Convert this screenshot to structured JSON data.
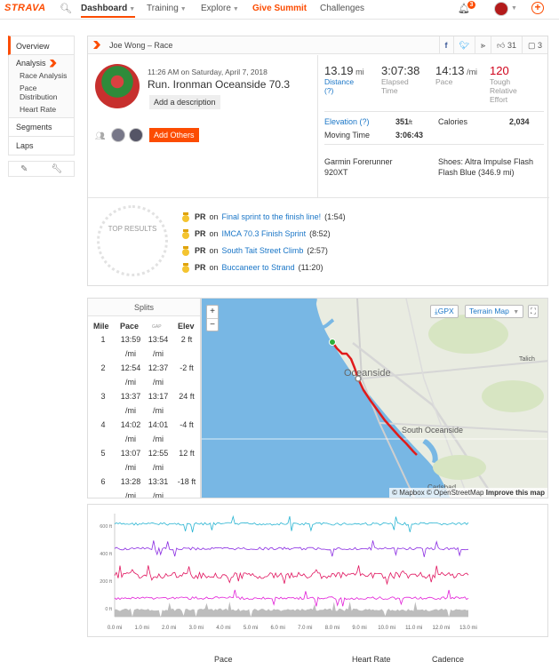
{
  "nav": {
    "logo": "STRAVA",
    "items": [
      {
        "label": "Dashboard",
        "active": true,
        "caret": true
      },
      {
        "label": "Training",
        "active": false,
        "caret": true
      },
      {
        "label": "Explore",
        "active": false,
        "caret": true
      },
      {
        "label": "Give Summit",
        "active": false,
        "caret": false
      },
      {
        "label": "Challenges",
        "active": false,
        "caret": false
      }
    ],
    "notification_count": "3",
    "icons": [
      "search-icon",
      "bell-icon",
      "avatar",
      "plus-icon"
    ]
  },
  "sidebar": {
    "overview": "Overview",
    "analysis": "Analysis",
    "analysis_items": [
      "Race Analysis",
      "Pace Distribution",
      "Heart Rate"
    ],
    "segments": "Segments",
    "laps": "Laps"
  },
  "activity": {
    "header_title": "Joe Wong – Race",
    "kudos": "31",
    "comments": "3",
    "date": "11:26 AM on Saturday, April 7, 2018",
    "name": "Run. Ironman Oceanside 70.3",
    "add_description": "Add a description",
    "add_others": "Add Others",
    "stats": {
      "distance_value": "13.19",
      "distance_unit": "mi",
      "distance_label": "Distance (?)",
      "elapsed_value": "3:07:38",
      "elapsed_label": "Elapsed Time",
      "pace_value": "14:13",
      "pace_unit": "/mi",
      "pace_label": "Pace",
      "effort_value": "120",
      "effort_label": "Tough Relative Effort"
    },
    "elevation_label": "Elevation (?)",
    "elevation_value": "351",
    "elevation_unit": "ft",
    "calories_label": "Calories",
    "calories_value": "2,034",
    "moving_time_label": "Moving Time",
    "moving_time_value": "3:06:43",
    "device": "Garmin Forerunner 920XT",
    "shoes": "Shoes: Altra Impulse Flash Flash Blue (346.9 mi)"
  },
  "top_results": {
    "label": "TOP RESULTS",
    "items": [
      {
        "tag": "PR",
        "on": "on",
        "segment": "Final sprint to the finish line!",
        "time": "(1:54)"
      },
      {
        "tag": "PR",
        "on": "on",
        "segment": "IMCA 70.3 Finish Sprint",
        "time": "(8:52)"
      },
      {
        "tag": "PR",
        "on": "on",
        "segment": "South Tait Street Climb",
        "time": "(2:57)"
      },
      {
        "tag": "PR",
        "on": "on",
        "segment": "Buccaneer to Strand",
        "time": "(11:20)"
      }
    ]
  },
  "splits": {
    "title": "Splits",
    "headers": {
      "mile": "Mile",
      "pace": "Pace",
      "gap": "GAP",
      "elev": "Elev"
    },
    "unit": "/mi",
    "rows": [
      {
        "mile": "1",
        "pace": "13:59",
        "gap": "13:54",
        "elev": "2 ft"
      },
      {
        "mile": "2",
        "pace": "12:54",
        "gap": "12:37",
        "elev": "-2 ft"
      },
      {
        "mile": "3",
        "pace": "13:37",
        "gap": "13:17",
        "elev": "24 ft"
      },
      {
        "mile": "4",
        "pace": "14:02",
        "gap": "14:01",
        "elev": "-4 ft"
      },
      {
        "mile": "5",
        "pace": "13:07",
        "gap": "12:55",
        "elev": "12 ft"
      },
      {
        "mile": "6",
        "pace": "13:28",
        "gap": "13:31",
        "elev": "-18 ft"
      }
    ]
  },
  "map": {
    "zoom_in": "+",
    "zoom_out": "−",
    "gpx": "GPX",
    "terrain": "Terrain Map",
    "labels": {
      "city": "Oceanside",
      "south": "South Oceanside",
      "talich": "Talich",
      "carlsbad": "Carlsbad"
    },
    "attribution": "© Mapbox © OpenStreetMap",
    "improve": "Improve this map",
    "water_color": "#78b7e4",
    "route_color": "#e01b1b"
  },
  "chart_data": {
    "type": "line",
    "x_ticks": [
      "0.0 mi",
      "1.0 mi",
      "2.0 mi",
      "3.0 mi",
      "4.0 mi",
      "5.0 mi",
      "6.0 mi",
      "7.0 mi",
      "8.0 mi",
      "9.0 mi",
      "10.0 mi",
      "11.0 mi",
      "12.0 mi",
      "13.0 mi"
    ],
    "y_ticks": [
      "600 ft",
      "400 ft",
      "200 ft",
      "0 ft"
    ],
    "series": [
      {
        "color": "#28b4d2",
        "level": 0.9
      },
      {
        "color": "#8a2be2",
        "level": 0.66
      },
      {
        "color": "#e0135e",
        "level": 0.4
      },
      {
        "color": "#e21fd8",
        "level": 0.18
      },
      {
        "color": "#bdbdbd",
        "level": 0.05,
        "fill": true
      }
    ]
  },
  "bottom": {
    "pace": "Pace",
    "heart_rate": "Heart Rate",
    "cadence": "Cadence"
  }
}
